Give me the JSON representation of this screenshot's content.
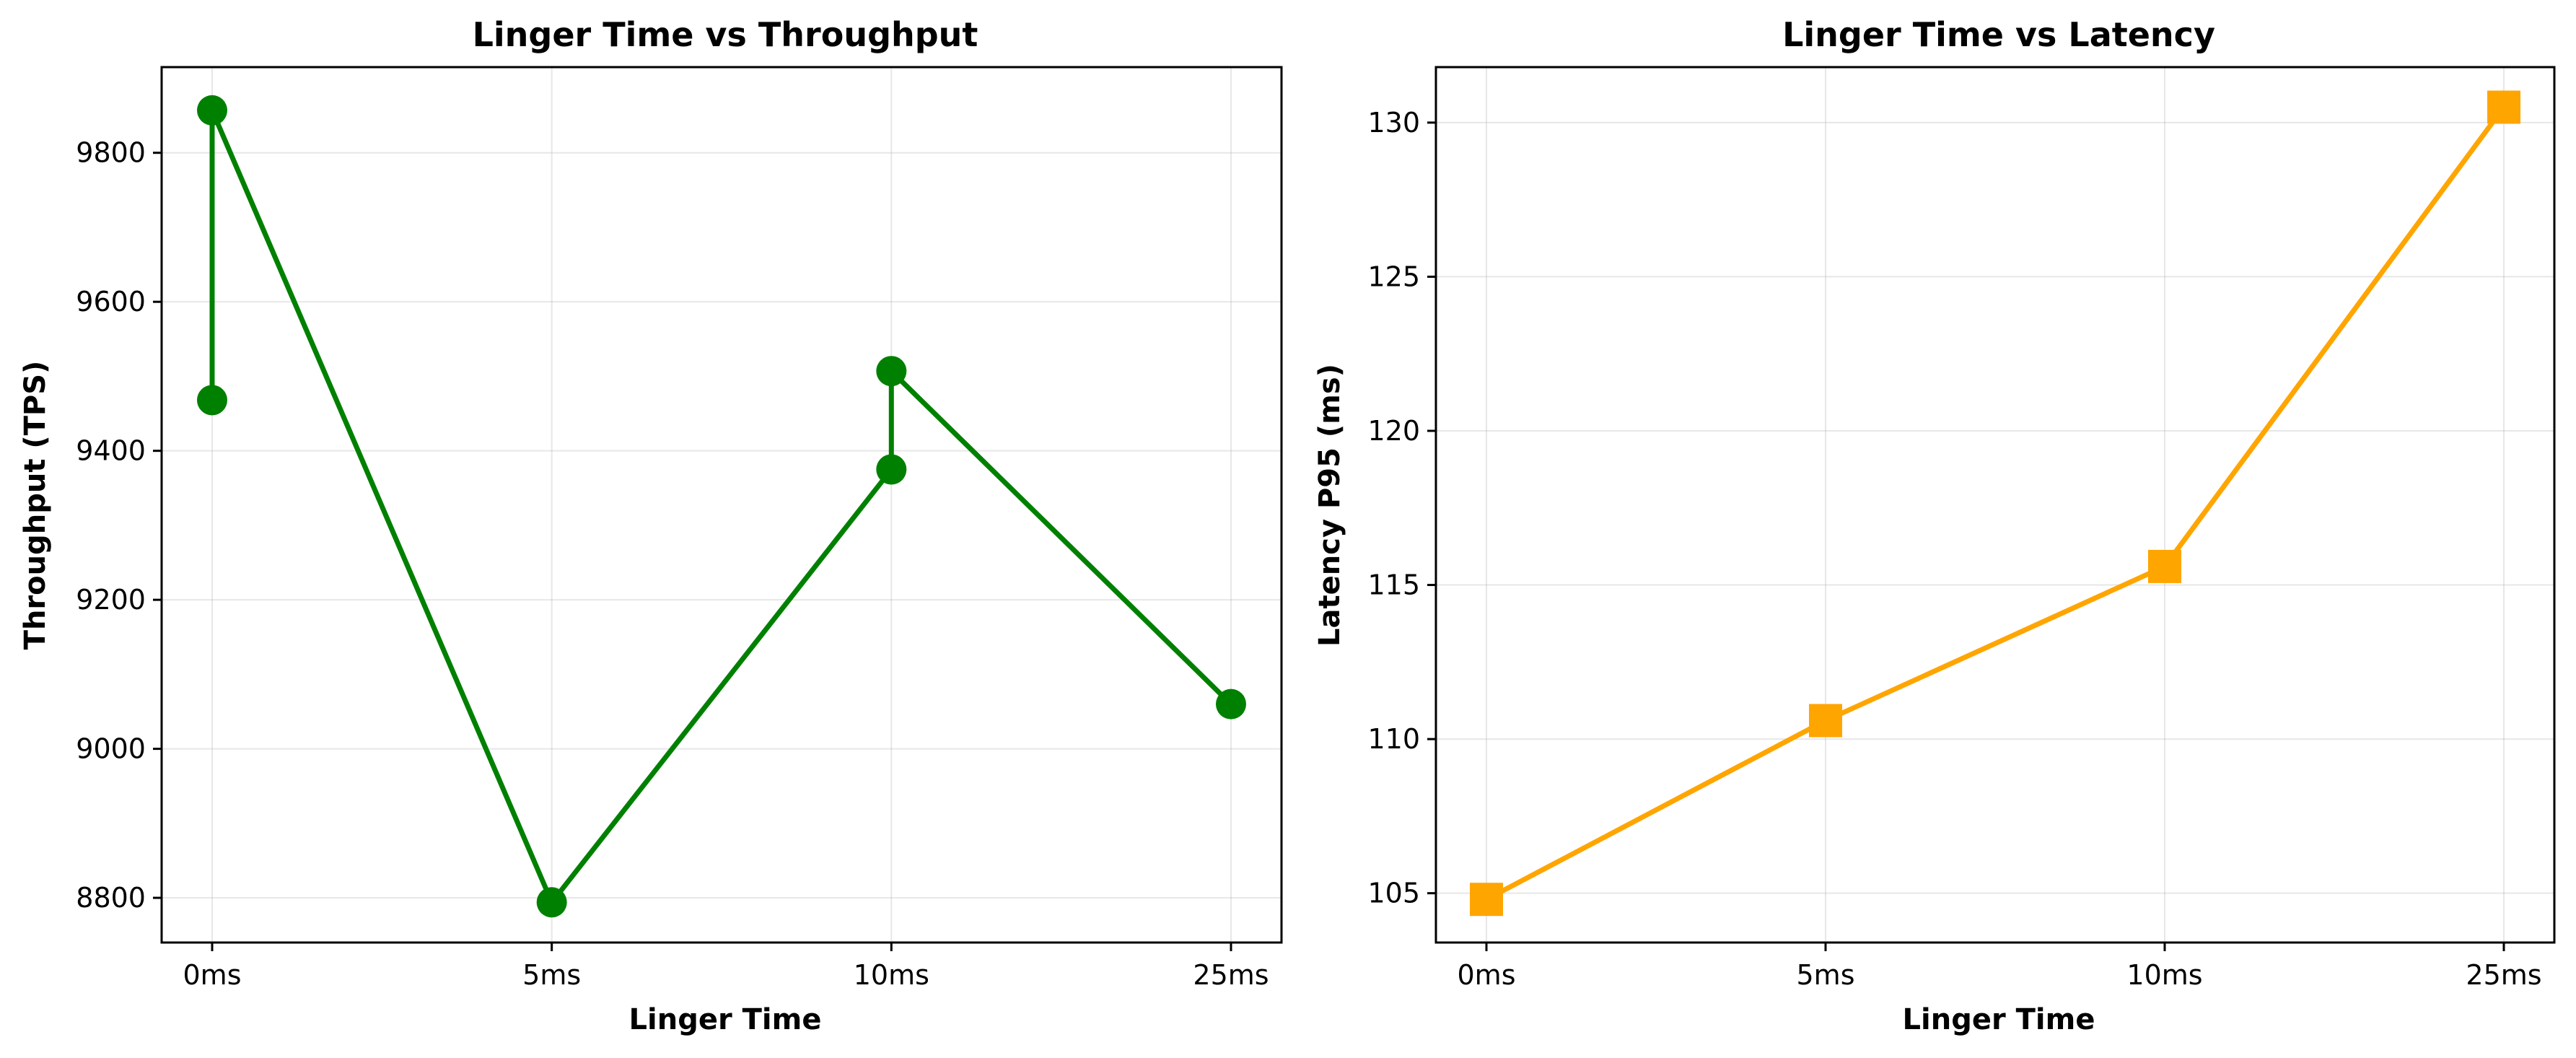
{
  "chart_data": [
    {
      "type": "line",
      "title": "Linger Time vs Throughput",
      "xlabel": "Linger Time",
      "ylabel": "Throughput (TPS)",
      "categories": [
        "0ms",
        "5ms",
        "10ms",
        "25ms"
      ],
      "x": [
        "0ms",
        "0ms",
        "5ms",
        "10ms",
        "10ms",
        "25ms"
      ],
      "values": [
        9468,
        9857,
        8794,
        9375,
        9507,
        9060
      ],
      "path_order": [
        0,
        1,
        2,
        3,
        4,
        5
      ],
      "yticks": [
        8800,
        9000,
        9200,
        9400,
        9600,
        9800
      ],
      "ylim": [
        8740,
        9915
      ],
      "grid": true,
      "color": "#008000",
      "marker": "circle"
    },
    {
      "type": "line",
      "title": "Linger Time vs Latency",
      "xlabel": "Linger Time",
      "ylabel": "Latency P95 (ms)",
      "categories": [
        "0ms",
        "5ms",
        "10ms",
        "25ms"
      ],
      "x": [
        "0ms",
        "5ms",
        "10ms",
        "25ms"
      ],
      "values": [
        104.8,
        110.6,
        115.6,
        130.5
      ],
      "yticks": [
        105,
        110,
        115,
        120,
        125,
        130
      ],
      "ylim": [
        103.4,
        131.8
      ],
      "grid": true,
      "color": "#FFA500",
      "marker": "square"
    }
  ]
}
